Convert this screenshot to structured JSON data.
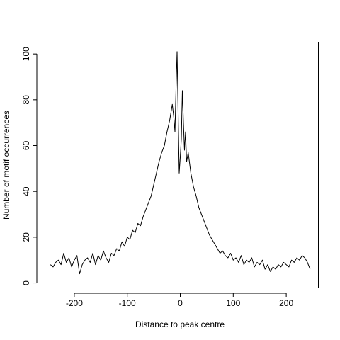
{
  "chart_data": {
    "type": "line",
    "title": "",
    "xlabel": "Distance to peak centre",
    "ylabel": "Number of motif occurrences",
    "xlim": [
      -260,
      260
    ],
    "ylim": [
      -2,
      105
    ],
    "xticks": [
      -200,
      -100,
      0,
      100,
      200
    ],
    "xtick_labels": [
      "-200",
      "-100",
      "0",
      "100",
      "200"
    ],
    "yticks": [
      0,
      20,
      40,
      60,
      80,
      100
    ],
    "ytick_labels": [
      "0",
      "20",
      "40",
      "60",
      "80",
      "100"
    ],
    "grid": false,
    "legend": "none",
    "colors": {
      "line": "#000000",
      "background": "#ffffff"
    },
    "series": [
      {
        "x": [
          -245,
          -240,
          -235,
          -230,
          -225,
          -220,
          -215,
          -210,
          -205,
          -200,
          -195,
          -190,
          -185,
          -180,
          -175,
          -170,
          -165,
          -160,
          -155,
          -150,
          -145,
          -140,
          -135,
          -130,
          -125,
          -120,
          -115,
          -110,
          -105,
          -100,
          -95,
          -90,
          -85,
          -80,
          -75,
          -70,
          -65,
          -60,
          -55,
          -50,
          -45,
          -40,
          -35,
          -30,
          -25,
          -20,
          -15,
          -12,
          -10,
          -8,
          -6,
          -4,
          -2,
          0,
          2,
          4,
          6,
          8,
          10,
          12,
          15,
          20,
          25,
          30,
          35,
          40,
          45,
          50,
          55,
          60,
          65,
          70,
          75,
          80,
          85,
          90,
          95,
          100,
          105,
          110,
          115,
          120,
          125,
          130,
          135,
          140,
          145,
          150,
          155,
          160,
          165,
          170,
          175,
          180,
          185,
          190,
          195,
          200,
          205,
          210,
          215,
          220,
          225,
          230,
          235,
          240,
          245
        ],
        "values": [
          8,
          7,
          9,
          10,
          8,
          13,
          9,
          11,
          7,
          10,
          12,
          4,
          8,
          10,
          11,
          9,
          13,
          8,
          12,
          10,
          14,
          11,
          9,
          13,
          12,
          15,
          14,
          18,
          16,
          20,
          19,
          23,
          22,
          26,
          25,
          29,
          32,
          35,
          38,
          43,
          48,
          53,
          57,
          60,
          66,
          71,
          78,
          72,
          66,
          85,
          101,
          74,
          48,
          55,
          63,
          84,
          70,
          58,
          66,
          53,
          57,
          48,
          42,
          38,
          33,
          30,
          27,
          24,
          21,
          19,
          17,
          15,
          13,
          14,
          12,
          11,
          13,
          10,
          11,
          9,
          12,
          8,
          10,
          9,
          11,
          7,
          9,
          8,
          10,
          6,
          8,
          5,
          7,
          6,
          8,
          7,
          9,
          8,
          7,
          10,
          9,
          11,
          10,
          12,
          11,
          9,
          6
        ]
      }
    ]
  }
}
